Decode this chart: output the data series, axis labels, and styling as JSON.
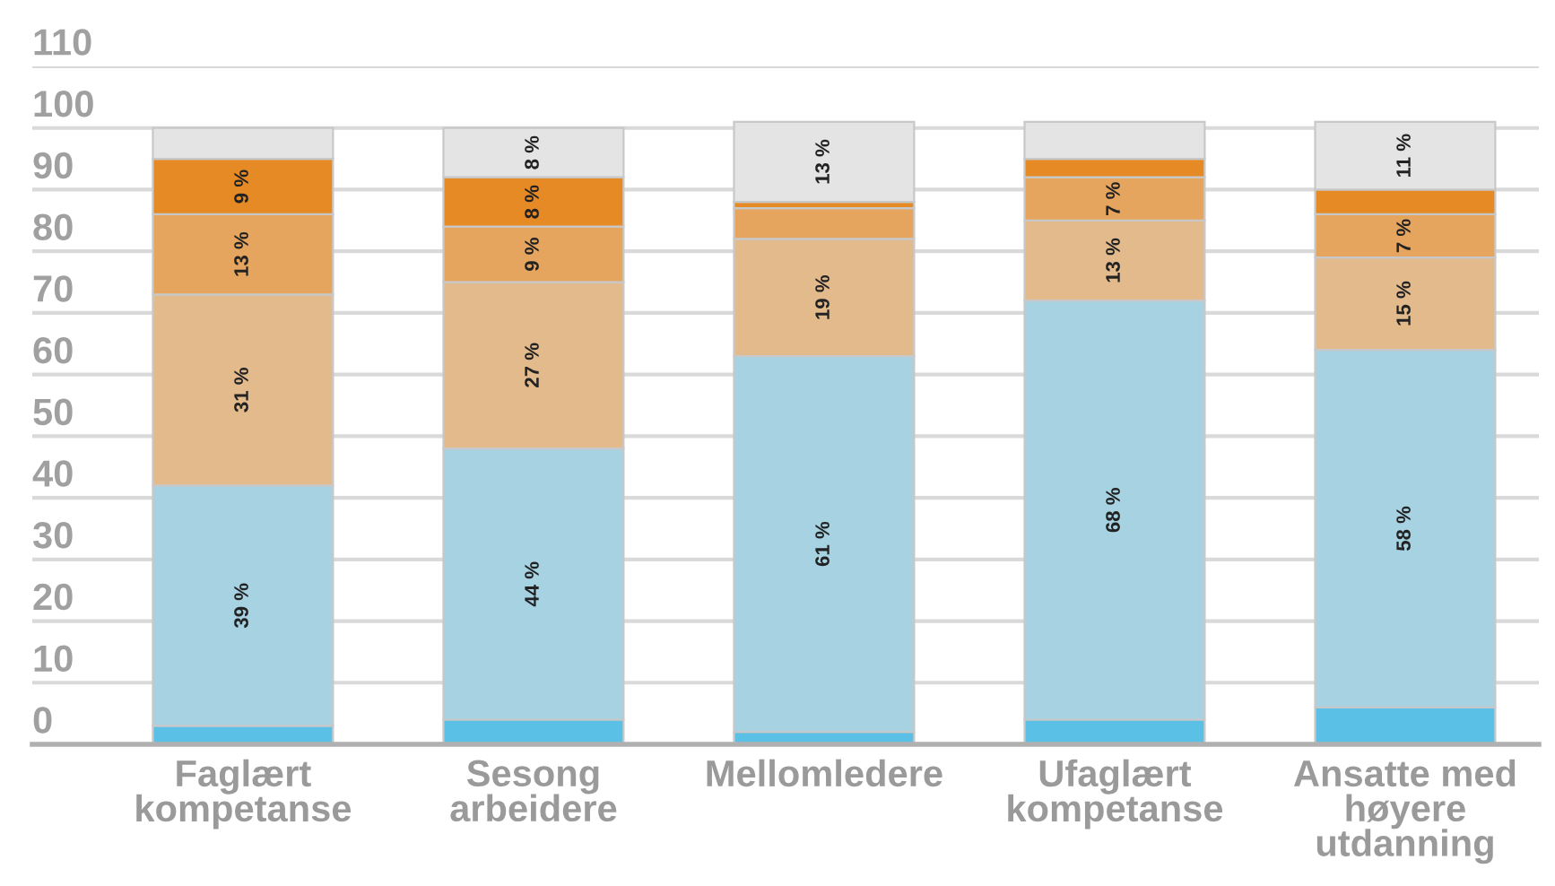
{
  "chart_data": {
    "type": "bar",
    "stacked": true,
    "categories": [
      "Faglært kompetanse",
      "Sesong arbeidere",
      "Mellomledere",
      "Ufaglært kompetanse",
      "Ansatte med høyere utdanning"
    ],
    "series": [
      {
        "color": "#5bc0e6",
        "values": [
          3,
          4,
          2,
          4,
          6
        ]
      },
      {
        "color": "#a6d2e2",
        "values": [
          39,
          44,
          61,
          68,
          58
        ],
        "value_labels": [
          "39 %",
          "44 %",
          "61 %",
          "68 %",
          "58 %"
        ]
      },
      {
        "color": "#e3ba8c",
        "values": [
          31,
          27,
          19,
          13,
          15
        ],
        "value_labels": [
          "31 %",
          "27 %",
          "19 %",
          "13 %",
          "15 %"
        ]
      },
      {
        "color": "#e6a55e",
        "values": [
          13,
          9,
          5,
          7,
          7
        ],
        "value_labels": [
          "13 %",
          "9 %",
          null,
          "7 %",
          "7 %"
        ]
      },
      {
        "color": "#e58a24",
        "values": [
          9,
          8,
          1,
          3,
          4
        ],
        "value_labels": [
          "9 %",
          "8 %",
          null,
          null,
          null
        ]
      },
      {
        "color": "#e4e4e4",
        "values": [
          5,
          8,
          13,
          6,
          11
        ],
        "value_labels": [
          null,
          "8 %",
          "13 %",
          null,
          "11 %"
        ]
      }
    ],
    "ylim": [
      0,
      110
    ],
    "yticks": [
      0,
      10,
      20,
      30,
      40,
      50,
      60,
      70,
      80,
      90,
      100,
      110
    ],
    "grid": "y",
    "legend": false
  }
}
